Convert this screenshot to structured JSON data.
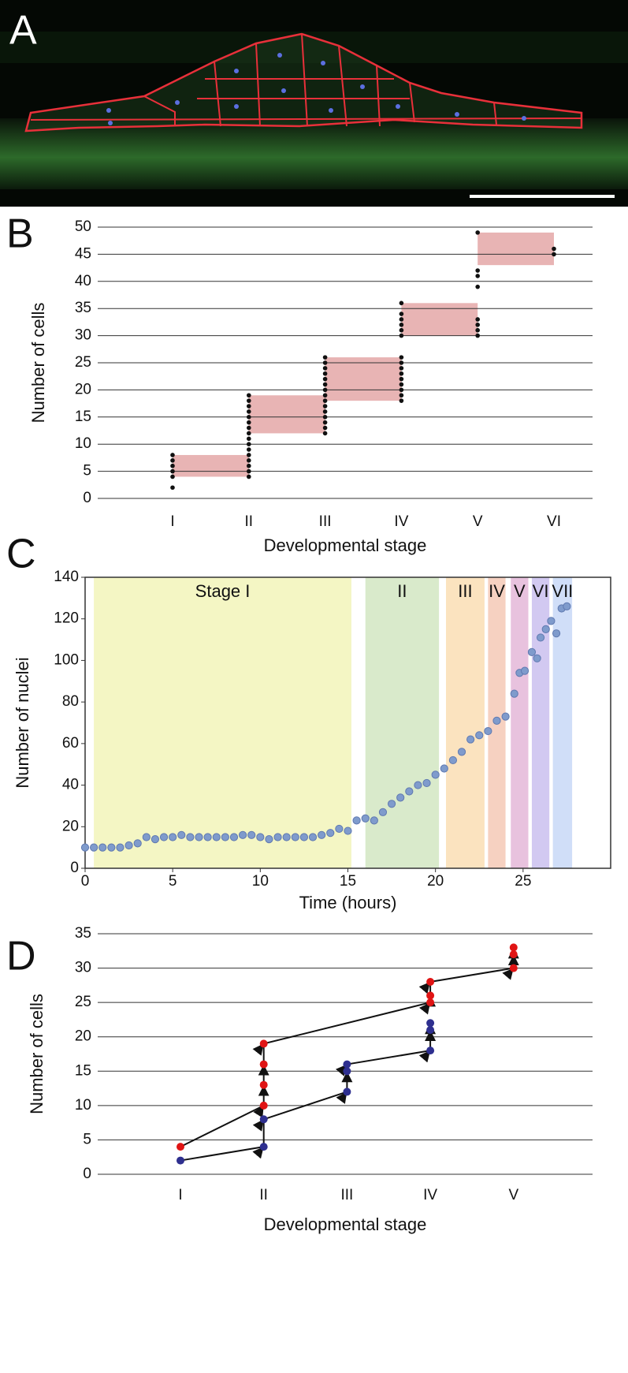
{
  "image_panel": {
    "label": "A"
  },
  "chart_data": [
    {
      "type": "strip",
      "panel": "B",
      "y_label": "Number of cells",
      "x_label": "Developmental stage",
      "categories": [
        "I",
        "II",
        "III",
        "IV",
        "V",
        "VI"
      ],
      "points": [
        [
          2,
          4,
          5,
          6,
          7,
          8
        ],
        [
          4,
          5,
          6,
          7,
          8,
          9,
          10,
          11,
          12,
          13,
          14,
          15,
          16,
          17,
          18,
          19
        ],
        [
          12,
          13,
          14,
          15,
          16,
          17,
          18,
          19,
          20,
          21,
          22,
          23,
          24,
          25,
          26
        ],
        [
          18,
          19,
          20,
          21,
          22,
          23,
          24,
          25,
          26,
          30,
          31,
          32,
          33,
          34,
          36
        ],
        [
          30,
          31,
          32,
          33,
          39,
          41,
          42,
          49
        ],
        [
          45,
          46
        ]
      ],
      "point_color": "#111111",
      "boxes": [
        {
          "low": 4,
          "high": 8
        },
        {
          "low": 12,
          "high": 19
        },
        {
          "low": 18,
          "high": 26
        },
        {
          "low": 30,
          "high": 36
        },
        {
          "low": 43,
          "high": 49
        },
        null
      ],
      "box_color": "#e8b4b4",
      "ylim": [
        0,
        50
      ],
      "yticks": [
        0,
        5,
        10,
        15,
        20,
        25,
        30,
        35,
        40,
        45,
        50
      ],
      "grid": true
    },
    {
      "type": "scatter",
      "panel": "C",
      "y_label": "Number of nuclei",
      "x_label": "Time (hours)",
      "x": [
        0,
        0.5,
        1,
        1.5,
        2,
        2.5,
        3,
        3.5,
        4,
        4.5,
        5,
        5.5,
        6,
        6.5,
        7,
        7.5,
        8,
        8.5,
        9,
        9.5,
        10,
        10.5,
        11,
        11.5,
        12,
        12.5,
        13,
        13.5,
        14,
        14.5,
        15,
        15.5,
        16,
        16.5,
        17,
        17.5,
        18,
        18.5,
        19,
        19.5,
        20,
        20.5,
        21,
        21.5,
        22,
        22.5,
        23,
        23.5,
        24,
        24.5,
        24.8,
        25.1,
        25.5,
        25.8,
        26,
        26.3,
        26.6,
        26.9,
        27.2,
        27.5
      ],
      "values": [
        10,
        10,
        10,
        10,
        10,
        11,
        12,
        15,
        14,
        15,
        15,
        16,
        15,
        15,
        15,
        15,
        15,
        15,
        16,
        16,
        15,
        14,
        15,
        15,
        15,
        15,
        15,
        16,
        17,
        19,
        18,
        23,
        24,
        23,
        27,
        31,
        34,
        37,
        40,
        41,
        45,
        48,
        52,
        56,
        62,
        64,
        66,
        71,
        73,
        84,
        94,
        95,
        104,
        101,
        111,
        115,
        119,
        113,
        125,
        126
      ],
      "color": "#7f9bcc",
      "stages": [
        {
          "label": "Stage I",
          "start": 0.5,
          "end": 15.2,
          "color": "#f4f6c4"
        },
        {
          "label": "II",
          "start": 16,
          "end": 20.2,
          "color": "#d9eacb"
        },
        {
          "label": "III",
          "start": 20.6,
          "end": 22.8,
          "color": "#fbe3bf"
        },
        {
          "label": "IV",
          "start": 23,
          "end": 24,
          "color": "#f6d1c1"
        },
        {
          "label": "V",
          "start": 24.3,
          "end": 25.3,
          "color": "#e8c2de"
        },
        {
          "label": "VI",
          "start": 25.5,
          "end": 26.5,
          "color": "#d2c9f1"
        },
        {
          "label": "VII",
          "start": 26.7,
          "end": 27.8,
          "color": "#d0def8"
        }
      ],
      "xlim": [
        0,
        30
      ],
      "xticks": [
        0,
        5,
        10,
        15,
        20,
        25
      ],
      "ylim": [
        0,
        140
      ],
      "yticks": [
        0,
        20,
        40,
        60,
        80,
        100,
        120,
        140
      ]
    },
    {
      "type": "lineage",
      "panel": "D",
      "y_label": "Number of cells",
      "x_label": "Developmental stage",
      "categories": [
        "I",
        "II",
        "III",
        "IV",
        "V"
      ],
      "series": [
        {
          "color": "#e01414",
          "x": [
            "I",
            "II",
            "II",
            "II",
            "II",
            "IV",
            "IV",
            "IV",
            "V",
            "V",
            "V"
          ],
          "values": [
            4,
            10,
            13,
            16,
            19,
            25,
            26,
            28,
            30,
            32,
            33
          ]
        },
        {
          "color": "#2e2f8f",
          "x": [
            "I",
            "II",
            "II",
            "III",
            "III",
            "III",
            "IV",
            "IV",
            "IV"
          ],
          "values": [
            2,
            4,
            8,
            12,
            15,
            16,
            18,
            21,
            22
          ]
        }
      ],
      "line_color": "#111111",
      "ylim": [
        0,
        35
      ],
      "yticks": [
        0,
        5,
        10,
        15,
        20,
        25,
        30,
        35
      ],
      "grid": true
    }
  ]
}
